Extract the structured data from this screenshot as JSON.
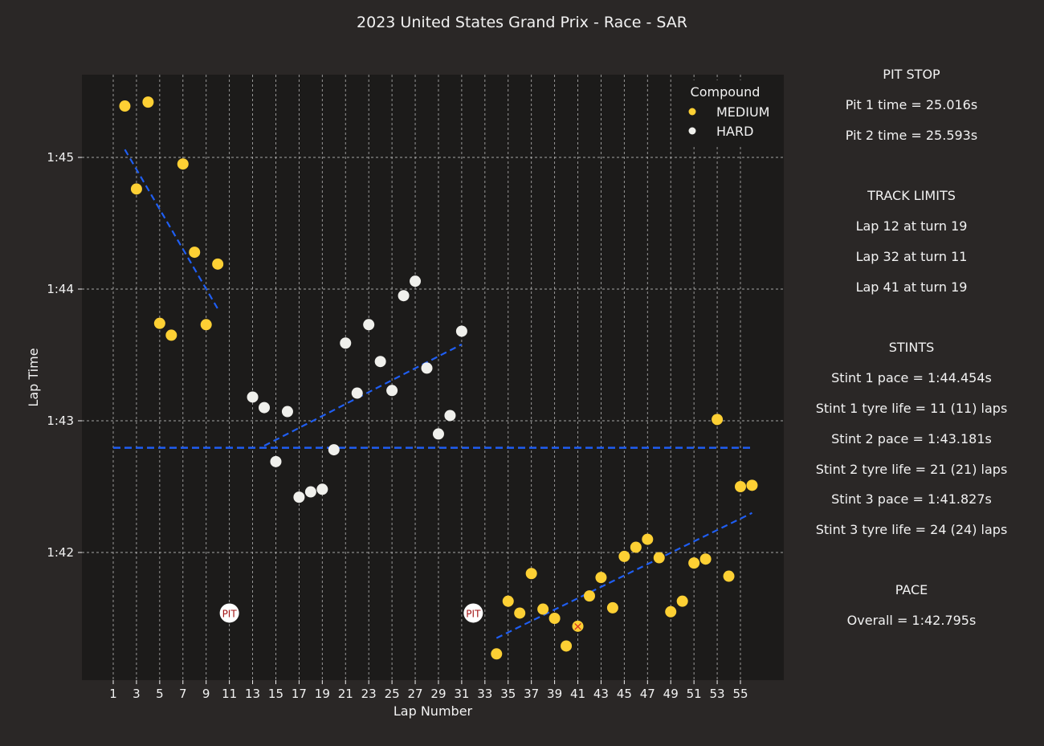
{
  "chart_data": {
    "type": "scatter",
    "title": "2023 United States Grand Prix - Race - SAR",
    "xlabel": "Lap Number",
    "ylabel": "Lap Time",
    "xlim": [
      0,
      58
    ],
    "ylim": [
      101.03,
      105.62
    ],
    "x_ticks": [
      1,
      3,
      5,
      7,
      9,
      11,
      13,
      15,
      17,
      19,
      21,
      23,
      25,
      27,
      29,
      31,
      33,
      35,
      37,
      39,
      41,
      43,
      45,
      47,
      49,
      51,
      53,
      55
    ],
    "y_ticks": [
      {
        "value": 102,
        "label": "1:42"
      },
      {
        "value": 103,
        "label": "1:43"
      },
      {
        "value": 104,
        "label": "1:44"
      },
      {
        "value": 105,
        "label": "1:45"
      }
    ],
    "grid": true,
    "legend": {
      "title": "Compound",
      "position": "top-right",
      "entries": [
        {
          "label": "MEDIUM",
          "color": "#fdd034"
        },
        {
          "label": "HARD",
          "color": "#f0f0ec"
        }
      ]
    },
    "series": [
      {
        "name": "MEDIUM",
        "color": "#fdd034",
        "points": [
          [
            2,
            105.39
          ],
          [
            3,
            104.76
          ],
          [
            4,
            105.42
          ],
          [
            5,
            103.74
          ],
          [
            6,
            103.65
          ],
          [
            7,
            104.95
          ],
          [
            8,
            104.28
          ],
          [
            9,
            103.73
          ],
          [
            10,
            104.19
          ],
          [
            34,
            101.23
          ],
          [
            35,
            101.63
          ],
          [
            36,
            101.54
          ],
          [
            37,
            101.84
          ],
          [
            38,
            101.57
          ],
          [
            39,
            101.5
          ],
          [
            40,
            101.29
          ],
          [
            41,
            101.44
          ],
          [
            42,
            101.67
          ],
          [
            43,
            101.81
          ],
          [
            44,
            101.58
          ],
          [
            45,
            101.97
          ],
          [
            46,
            102.04
          ],
          [
            47,
            102.1
          ],
          [
            48,
            101.96
          ],
          [
            49,
            101.55
          ],
          [
            50,
            101.63
          ],
          [
            51,
            101.92
          ],
          [
            52,
            101.95
          ],
          [
            53,
            103.01
          ],
          [
            54,
            101.82
          ],
          [
            55,
            102.5
          ],
          [
            56,
            102.51
          ]
        ]
      },
      {
        "name": "HARD",
        "color": "#f0f0ec",
        "points": [
          [
            13,
            103.18
          ],
          [
            14,
            103.1
          ],
          [
            15,
            102.69
          ],
          [
            16,
            103.07
          ],
          [
            17,
            102.42
          ],
          [
            18,
            102.46
          ],
          [
            19,
            102.48
          ],
          [
            20,
            102.78
          ],
          [
            21,
            103.59
          ],
          [
            22,
            103.21
          ],
          [
            23,
            103.73
          ],
          [
            24,
            103.45
          ],
          [
            25,
            103.23
          ],
          [
            26,
            103.95
          ],
          [
            27,
            104.06
          ],
          [
            28,
            103.4
          ],
          [
            29,
            102.9
          ],
          [
            30,
            103.04
          ],
          [
            31,
            103.68
          ]
        ]
      }
    ],
    "trend_lines": [
      {
        "stint": 1,
        "from": [
          2,
          105.06
        ],
        "to": [
          10,
          103.85
        ]
      },
      {
        "stint": 2,
        "from": [
          14,
          102.81
        ],
        "to": [
          31,
          103.58
        ]
      },
      {
        "stint": 3,
        "from": [
          34,
          101.35
        ],
        "to": [
          56,
          102.3
        ]
      }
    ],
    "overall_pace_line": {
      "value": 102.795,
      "from_lap": 1,
      "to_lap": 56
    },
    "pit_markers": [
      {
        "lap": 11,
        "y": 101.54,
        "label": "PIT"
      },
      {
        "lap": 32,
        "y": 101.54,
        "label": "PIT"
      }
    ],
    "track_limit_marker": {
      "lap": 41,
      "y": 101.44,
      "symbol": "×"
    },
    "colors": {
      "background": "#2a2726",
      "plot_background": "#1c1b1a",
      "grid": "#bdbdbd",
      "trend": "#1f5ef2",
      "pit_text": "#a31515",
      "marker_x": "#d62d20"
    }
  },
  "side_panel": {
    "pit_stop_heading": "PIT STOP",
    "pit1": "Pit 1 time = 25.016s",
    "pit2": "Pit 2 time = 25.593s",
    "track_limits_heading": "TRACK LIMITS",
    "tl1": "Lap 12 at turn 19",
    "tl2": "Lap 32 at turn 11",
    "tl3": "Lap 41 at turn 19",
    "stints_heading": "STINTS",
    "stint1_pace": "Stint 1 pace = 1:44.454s",
    "stint1_life": "Stint 1 tyre life = 11 (11) laps",
    "stint2_pace": "Stint 2 pace = 1:43.181s",
    "stint2_life": "Stint 2 tyre life = 21 (21) laps",
    "stint3_pace": "Stint 3 pace = 1:41.827s",
    "stint3_life": "Stint 3 tyre life = 24 (24) laps",
    "pace_heading": "PACE",
    "overall": "Overall = 1:42.795s"
  }
}
